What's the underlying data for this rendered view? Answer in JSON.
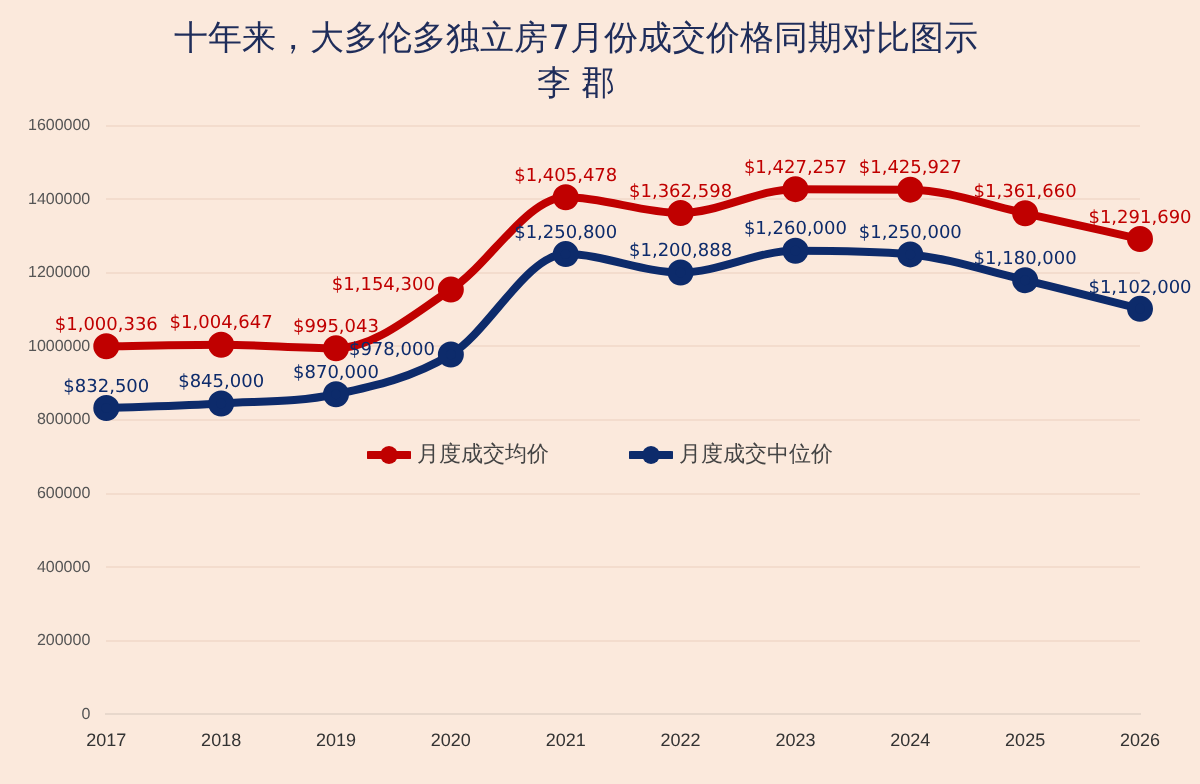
{
  "chart_data": {
    "type": "line",
    "title": "十年来，大多伦多独立房7月份成交价格同期对比图示",
    "subtitle": "李 郡",
    "categories": [
      "2017",
      "2018",
      "2019",
      "2020",
      "2021",
      "2022",
      "2023",
      "2024",
      "2025",
      "2026"
    ],
    "series": [
      {
        "name": "月度成交均价",
        "color": "#c00000",
        "values": [
          1000336,
          1004647,
          995043,
          1154300,
          1405478,
          1362598,
          1427257,
          1425927,
          1361660,
          1291690
        ],
        "value_labels": [
          "$1,000,336",
          "$1,004,647",
          "$995,043",
          "$1,154,300",
          "$1,405,478",
          "$1,362,598",
          "$1,427,257",
          "$1,425,927",
          "$1,361,660",
          "$1,291,690"
        ]
      },
      {
        "name": "月度成交中位价",
        "color": "#0d2b6b",
        "values": [
          832500,
          845000,
          870000,
          978000,
          1250800,
          1200888,
          1260000,
          1250000,
          1180000,
          1102000
        ],
        "value_labels": [
          "$832,500",
          "$845,000",
          "$870,000",
          "$978,000",
          "$1,250,800",
          "$1,200,888",
          "$1,260,000",
          "$1,250,000",
          "$1,180,000",
          "$1,102,000"
        ]
      }
    ],
    "ylim": [
      0,
      1600000
    ],
    "yticks": [
      0,
      200000,
      400000,
      600000,
      800000,
      1000000,
      1200000,
      1400000,
      1600000
    ],
    "grid": "y",
    "legend": "center",
    "marker": "circle",
    "line_style": "solid"
  }
}
